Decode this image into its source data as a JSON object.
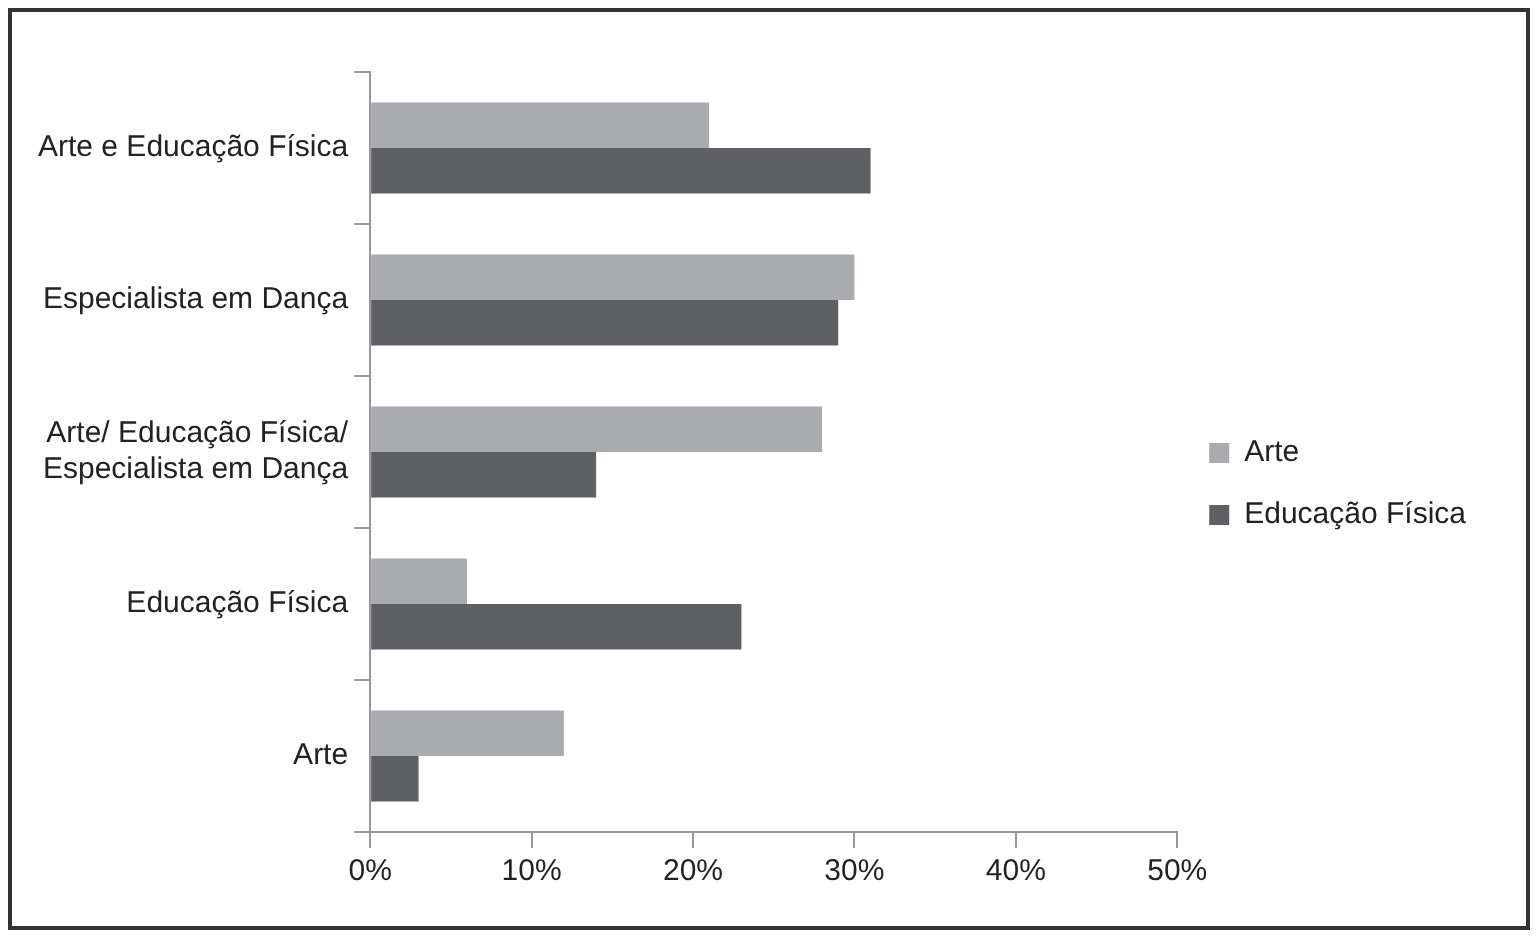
{
  "chart_data": {
    "type": "bar",
    "orientation": "horizontal",
    "categories": [
      "Arte e Educação Física",
      "Especialista em Dança",
      "Arte/ Educação Física/ Especialista em Dança",
      "Educação Física",
      "Arte"
    ],
    "series": [
      {
        "name": "Arte",
        "color": "#a9abae",
        "values": [
          21,
          30,
          28,
          6,
          12
        ]
      },
      {
        "name": "Educação Física",
        "color": "#5f6064",
        "values": [
          31,
          29,
          14,
          23,
          3
        ]
      }
    ],
    "xlim": [
      0,
      50
    ],
    "xticks": [
      {
        "value": 0,
        "label": "0%"
      },
      {
        "value": 10,
        "label": "10%"
      },
      {
        "value": 20,
        "label": "20%"
      },
      {
        "value": 30,
        "label": "30%"
      },
      {
        "value": 40,
        "label": "40%"
      },
      {
        "value": 50,
        "label": "50%"
      }
    ],
    "grid": false,
    "legend": "right"
  }
}
